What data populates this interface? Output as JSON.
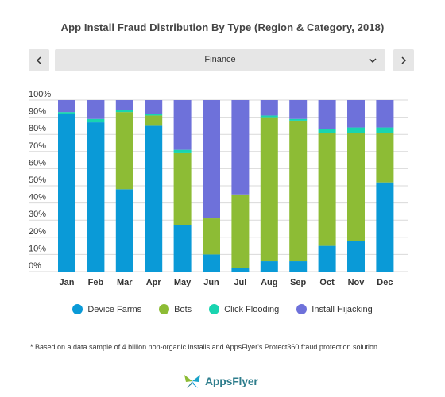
{
  "title": "App Install Fraud Distribution By Type (Region & Category, 2018)",
  "selector": {
    "value": "Finance"
  },
  "icons": {
    "prev": "chevron-left-icon",
    "next": "chevron-right-icon",
    "dropdown": "chevron-down-icon"
  },
  "colors": {
    "device_farms": "#0a9ad7",
    "bots": "#8dbc35",
    "click_flooding": "#19d4b0",
    "install_hijacking": "#6e71da",
    "gridline": "#d9d9d9"
  },
  "footnote": "* Based on a data sample of 4 billion non-organic installs and AppsFlyer's Protect360 fraud protection solution",
  "logo": {
    "text": "AppsFlyer"
  },
  "chart_data": {
    "type": "bar",
    "stacked": true,
    "title": "App Install Fraud Distribution By Type (Region & Category, 2018)",
    "categories": [
      "Jan",
      "Feb",
      "Mar",
      "Apr",
      "May",
      "Jun",
      "Jul",
      "Aug",
      "Sep",
      "Oct",
      "Nov",
      "Dec"
    ],
    "y_ticks": [
      "0%",
      "10%",
      "20%",
      "30%",
      "40%",
      "50%",
      "60%",
      "70%",
      "80%",
      "90%",
      "100%"
    ],
    "ylim": [
      0,
      100
    ],
    "grid": true,
    "legend_position": "bottom",
    "series": [
      {
        "name": "Device Farms",
        "color": "#0a9ad7",
        "values": [
          92,
          87,
          48,
          85,
          27,
          10,
          2,
          6,
          6,
          15,
          18,
          52
        ]
      },
      {
        "name": "Bots",
        "color": "#8dbc35",
        "values": [
          0,
          0,
          45,
          6,
          42,
          21,
          43,
          84,
          82,
          66,
          63,
          29
        ]
      },
      {
        "name": "Click Flooding",
        "color": "#19d4b0",
        "values": [
          1,
          2,
          1,
          1,
          2,
          0,
          0,
          1,
          1,
          2,
          3,
          3
        ]
      },
      {
        "name": "Install Hijacking",
        "color": "#6e71da",
        "values": [
          7,
          11,
          6,
          8,
          29,
          69,
          55,
          9,
          11,
          17,
          16,
          16
        ]
      }
    ]
  }
}
